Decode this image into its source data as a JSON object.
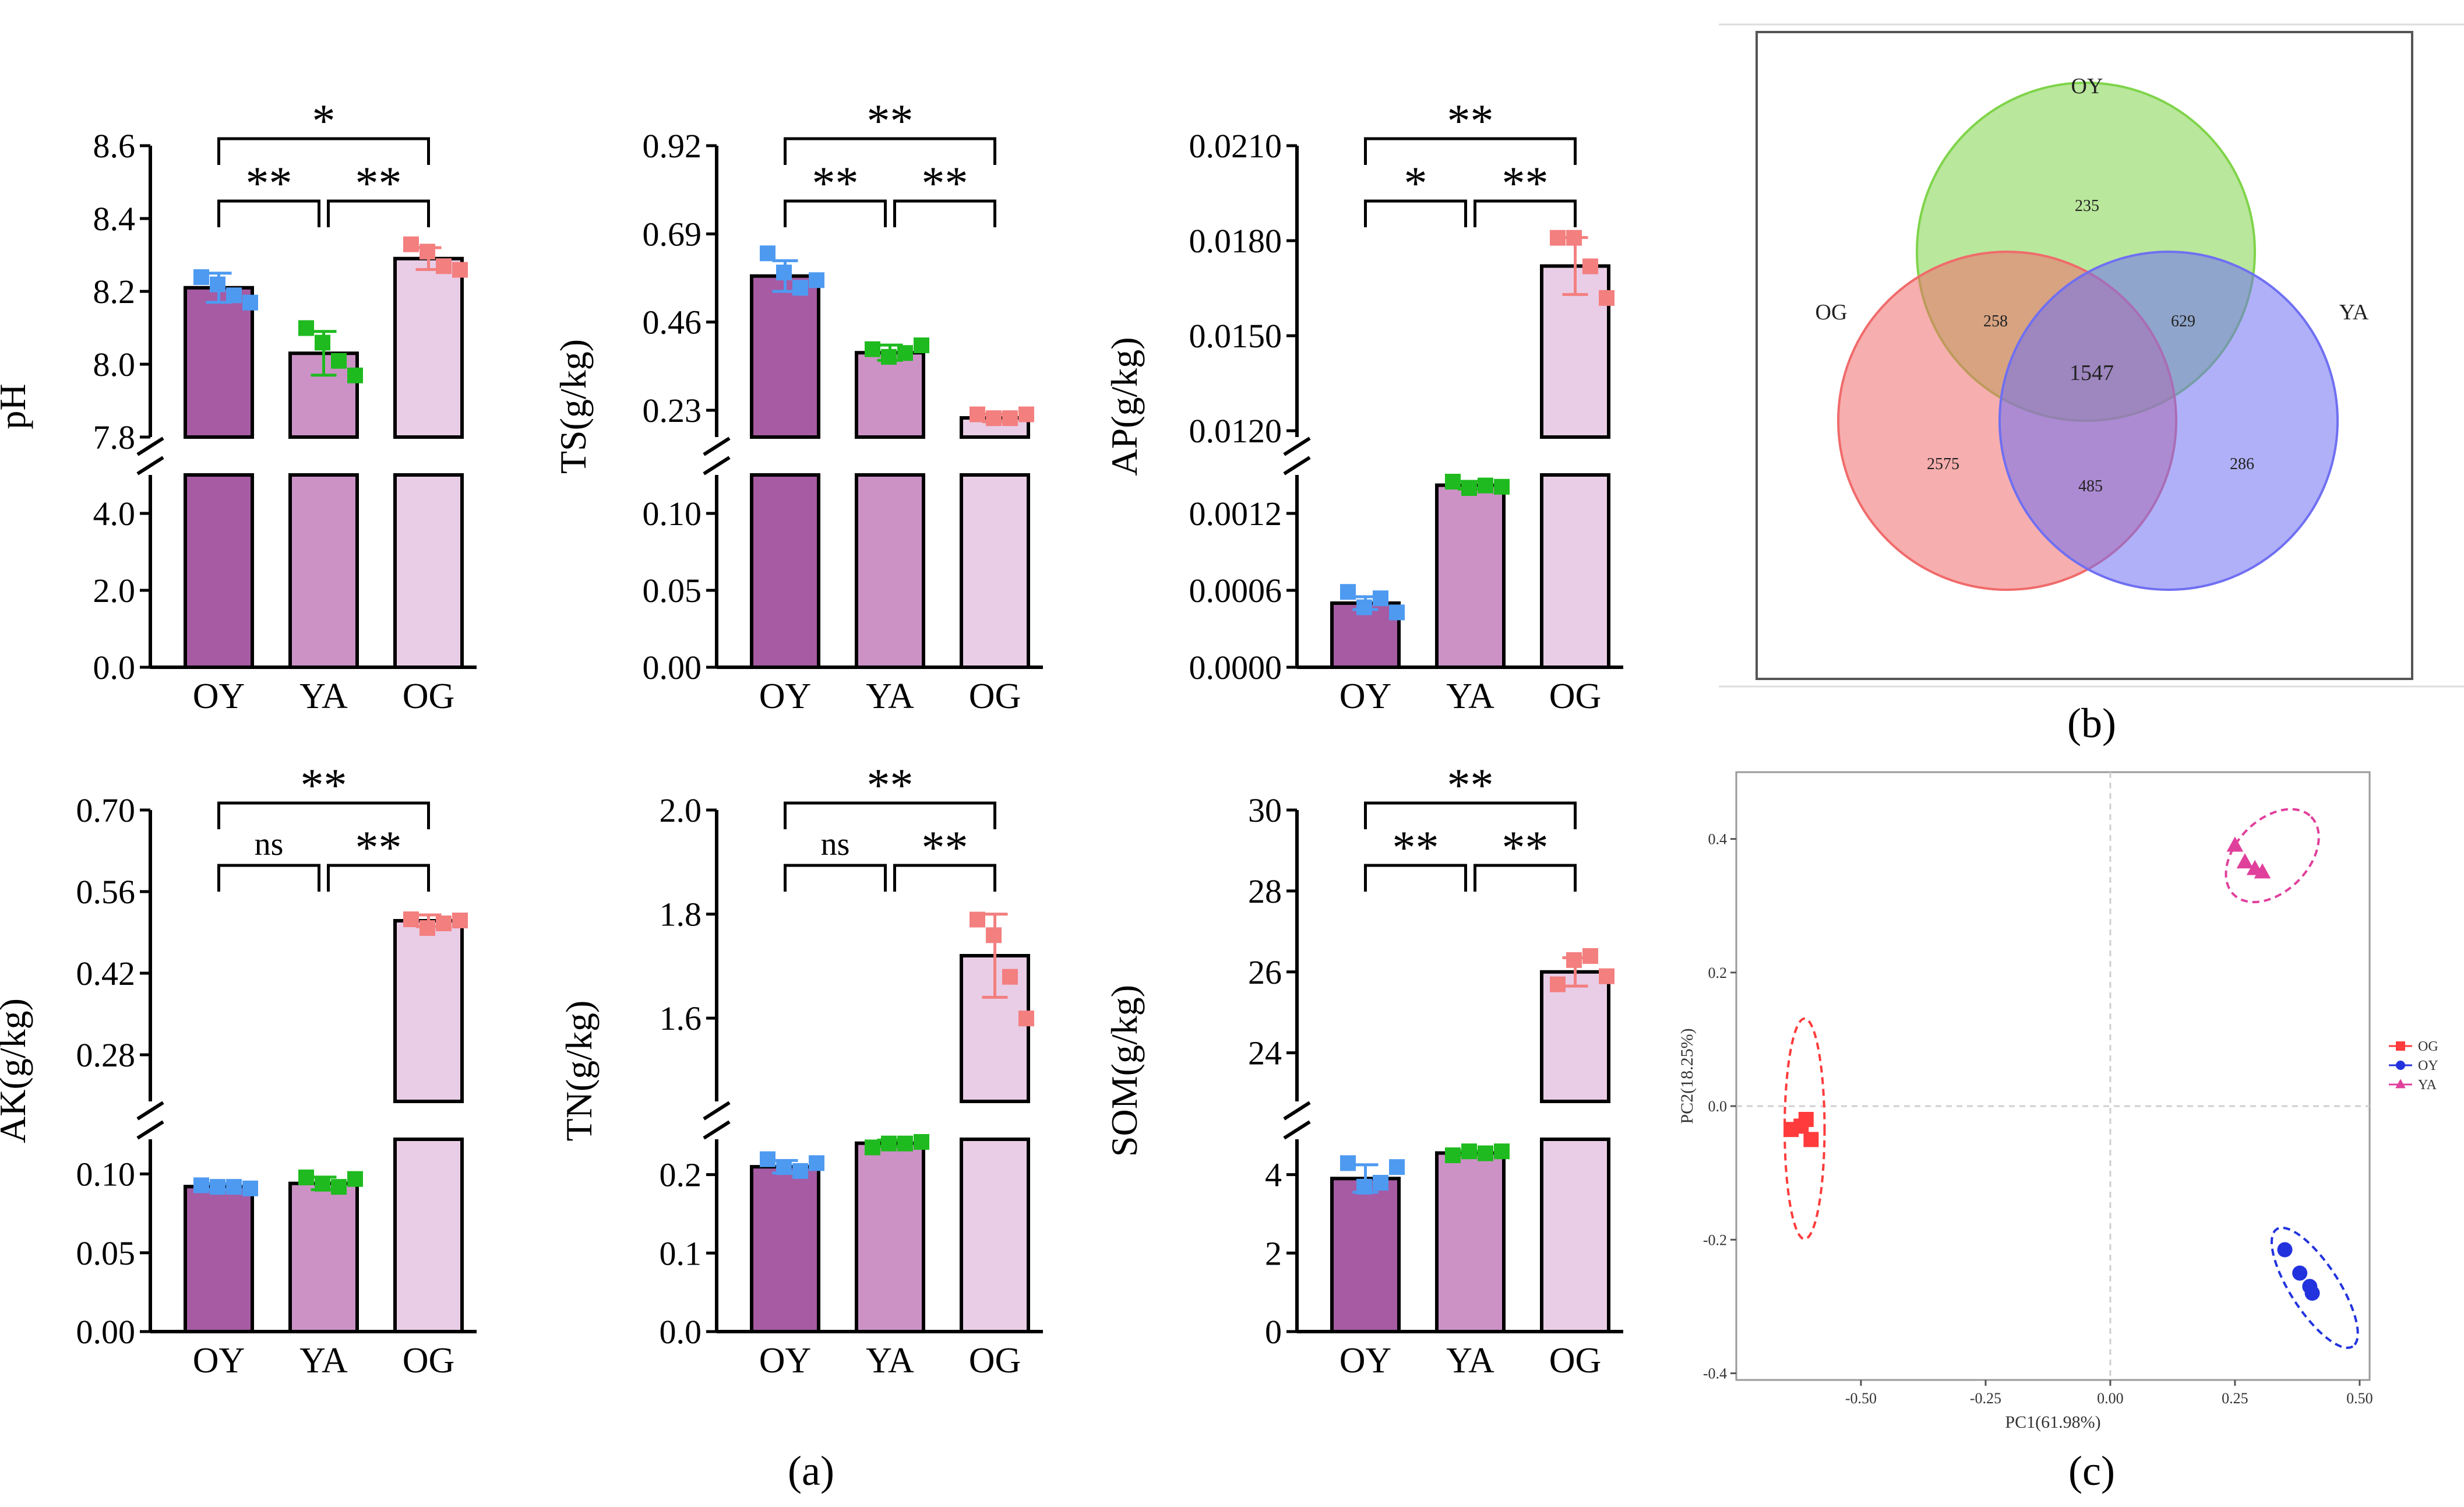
{
  "figure": {
    "caption_a": "(a)",
    "caption_b": "(b)",
    "caption_c": "(c)"
  },
  "chart_data": [
    {
      "type": "bar",
      "panel": "a-pH",
      "ylabel": "pH",
      "categories": [
        "OY",
        "YA",
        "OG"
      ],
      "values": [
        8.21,
        8.03,
        8.29
      ],
      "errors": [
        0.04,
        0.06,
        0.03
      ],
      "points": [
        [
          8.24,
          8.22,
          8.19,
          8.17
        ],
        [
          8.1,
          8.06,
          8.01,
          7.97
        ],
        [
          8.33,
          8.31,
          8.27,
          8.26
        ]
      ],
      "lower": {
        "ylim": [
          0,
          5
        ],
        "ticks": [
          0.0,
          2.0,
          4.0
        ],
        "tick_labels": [
          "0.0",
          "2.0",
          "4.0"
        ]
      },
      "upper": {
        "ylim": [
          7.8,
          8.6
        ],
        "ticks": [
          7.8,
          8.0,
          8.2,
          8.4,
          8.6
        ],
        "tick_labels": [
          "7.8",
          "8.0",
          "8.2",
          "8.4",
          "8.6"
        ]
      },
      "significance": [
        {
          "from": 0,
          "to": 1,
          "label": "**"
        },
        {
          "from": 1,
          "to": 2,
          "label": "**"
        },
        {
          "from": 0,
          "to": 2,
          "label": "*"
        }
      ]
    },
    {
      "type": "bar",
      "panel": "a-TS",
      "ylabel": "TS(g/kg)",
      "categories": [
        "OY",
        "YA",
        "OG"
      ],
      "values": [
        0.58,
        0.38,
        0.21
      ],
      "errors": [
        0.04,
        0.02,
        0.01
      ],
      "points": [
        [
          0.64,
          0.59,
          0.55,
          0.57
        ],
        [
          0.39,
          0.37,
          0.38,
          0.4
        ],
        [
          0.22,
          0.21,
          0.21,
          0.22
        ]
      ],
      "lower": {
        "ylim": [
          0,
          0.125
        ],
        "ticks": [
          0.0,
          0.05,
          0.1
        ],
        "tick_labels": [
          "0.00",
          "0.05",
          "0.10"
        ]
      },
      "upper": {
        "ylim": [
          0.16,
          0.92
        ],
        "ticks": [
          0.23,
          0.46,
          0.69,
          0.92
        ],
        "tick_labels": [
          "0.23",
          "0.46",
          "0.69",
          "0.92"
        ]
      },
      "significance": [
        {
          "from": 0,
          "to": 1,
          "label": "**"
        },
        {
          "from": 1,
          "to": 2,
          "label": "**"
        },
        {
          "from": 0,
          "to": 2,
          "label": "**"
        }
      ]
    },
    {
      "type": "bar",
      "panel": "a-AP",
      "ylabel": "AP(g/kg)",
      "categories": [
        "OY",
        "YA",
        "OG"
      ],
      "values": [
        0.0005,
        0.00142,
        0.0172
      ],
      "errors": [
        5e-05,
        3e-05,
        0.0009
      ],
      "points": [
        [
          0.00059,
          0.00047,
          0.00054,
          0.00043
        ],
        [
          0.00145,
          0.0014,
          0.00142,
          0.00141
        ],
        [
          0.0181,
          0.0181,
          0.0172,
          0.0162
        ]
      ],
      "lower": {
        "ylim": [
          0,
          0.0015
        ],
        "ticks": [
          0.0,
          0.0006,
          0.0012
        ],
        "tick_labels": [
          "0.0000",
          "0.0006",
          "0.0012"
        ]
      },
      "upper": {
        "ylim": [
          0.0118,
          0.021
        ],
        "ticks": [
          0.012,
          0.015,
          0.018,
          0.021
        ],
        "tick_labels": [
          "0.0120",
          "0.0150",
          "0.0180",
          "0.0210"
        ]
      },
      "significance": [
        {
          "from": 0,
          "to": 1,
          "label": "*"
        },
        {
          "from": 1,
          "to": 2,
          "label": "**"
        },
        {
          "from": 0,
          "to": 2,
          "label": "**"
        }
      ]
    },
    {
      "type": "bar",
      "panel": "a-AK",
      "ylabel": "AK(g/kg)",
      "categories": [
        "OY",
        "YA",
        "OG"
      ],
      "values": [
        0.092,
        0.094,
        0.51
      ],
      "errors": [
        0.002,
        0.004,
        0.01
      ],
      "points": [
        [
          0.093,
          0.092,
          0.092,
          0.091
        ],
        [
          0.098,
          0.094,
          0.092,
          0.097
        ],
        [
          0.513,
          0.498,
          0.506,
          0.511
        ]
      ],
      "lower": {
        "ylim": [
          0,
          0.122
        ],
        "ticks": [
          0.0,
          0.05,
          0.1
        ],
        "tick_labels": [
          "0.00",
          "0.05",
          "0.10"
        ]
      },
      "upper": {
        "ylim": [
          0.2,
          0.7
        ],
        "ticks": [
          0.28,
          0.42,
          0.56,
          0.7
        ],
        "tick_labels": [
          "0.28",
          "0.42",
          "0.56",
          "0.70"
        ]
      },
      "significance": [
        {
          "from": 0,
          "to": 1,
          "label": "ns"
        },
        {
          "from": 1,
          "to": 2,
          "label": "**"
        },
        {
          "from": 0,
          "to": 2,
          "label": "**"
        }
      ]
    },
    {
      "type": "bar",
      "panel": "a-TN",
      "ylabel": "TN(g/kg)",
      "categories": [
        "OY",
        "YA",
        "OG"
      ],
      "values": [
        0.21,
        0.24,
        1.72
      ],
      "errors": [
        0.008,
        0.004,
        0.08
      ],
      "points": [
        [
          0.22,
          0.21,
          0.205,
          0.215
        ],
        [
          0.235,
          0.24,
          0.24,
          0.242
        ],
        [
          1.79,
          1.76,
          1.68,
          1.6
        ]
      ],
      "lower": {
        "ylim": [
          0,
          0.245
        ],
        "ticks": [
          0.0,
          0.1,
          0.2
        ],
        "tick_labels": [
          "0.0",
          "0.1",
          "0.2"
        ]
      },
      "upper": {
        "ylim": [
          1.44,
          2.0
        ],
        "ticks": [
          1.6,
          1.8,
          2.0
        ],
        "tick_labels": [
          "1.6",
          "1.8",
          "2.0"
        ]
      },
      "significance": [
        {
          "from": 0,
          "to": 1,
          "label": "ns"
        },
        {
          "from": 1,
          "to": 2,
          "label": "**"
        },
        {
          "from": 0,
          "to": 2,
          "label": "**"
        }
      ]
    },
    {
      "type": "bar",
      "panel": "a-SOM",
      "ylabel": "SOM(g/kg)",
      "categories": [
        "OY",
        "YA",
        "OG"
      ],
      "values": [
        3.9,
        4.55,
        26.0
      ],
      "errors": [
        0.35,
        0.05,
        0.35
      ],
      "points": [
        [
          4.3,
          3.7,
          3.8,
          4.2
        ],
        [
          4.5,
          4.6,
          4.55,
          4.6
        ],
        [
          25.7,
          26.3,
          26.4,
          25.9
        ]
      ],
      "lower": {
        "ylim": [
          0,
          4.9
        ],
        "ticks": [
          0,
          2,
          4
        ],
        "tick_labels": [
          "0",
          "2",
          "4"
        ]
      },
      "upper": {
        "ylim": [
          22.8,
          30
        ],
        "ticks": [
          24,
          26,
          28,
          30
        ],
        "tick_labels": [
          "24",
          "26",
          "28",
          "30"
        ]
      },
      "significance": [
        {
          "from": 0,
          "to": 1,
          "label": "**"
        },
        {
          "from": 1,
          "to": 2,
          "label": "**"
        },
        {
          "from": 0,
          "to": 2,
          "label": "**"
        }
      ]
    },
    {
      "type": "venn",
      "panel": "b",
      "sets": [
        {
          "name": "OY",
          "color": "#7fd44a"
        },
        {
          "name": "OG",
          "color": "#f06b6b"
        },
        {
          "name": "YA",
          "color": "#6f6ff2"
        }
      ],
      "regions": {
        "OY_only": "235",
        "OG_only": "2575",
        "YA_only": "286",
        "OY_OG": "258",
        "OY_YA": "629",
        "OG_YA": "485",
        "all": "1547"
      }
    },
    {
      "type": "scatter",
      "panel": "c",
      "xlabel": "PC1(61.98%)",
      "ylabel": "PC2(18.25%)",
      "xlim": [
        -0.75,
        0.52
      ],
      "ylim": [
        -0.41,
        0.5
      ],
      "xticks": [
        -0.5,
        -0.25,
        0.0,
        0.25,
        0.5
      ],
      "xtick_labels": [
        "-0.50",
        "-0.25",
        "0.00",
        "0.25",
        "0.50"
      ],
      "yticks": [
        -0.4,
        -0.2,
        0.0,
        0.2,
        0.4
      ],
      "ytick_labels": [
        "-0.4",
        "-0.2",
        "0.0",
        "0.2",
        "0.4"
      ],
      "legend": "right",
      "series": [
        {
          "name": "OG",
          "color": "#ff3b3b",
          "marker": "square",
          "x": [
            -0.62,
            -0.61,
            -0.6,
            -0.64
          ],
          "y": [
            -0.03,
            -0.02,
            -0.05,
            -0.035
          ],
          "ellipse": {
            "cx": -0.613,
            "cy": -0.034,
            "rx": 0.04,
            "ry": 0.055,
            "angle": 0
          }
        },
        {
          "name": "OY",
          "color": "#2233dd",
          "marker": "circle",
          "x": [
            0.35,
            0.38,
            0.4,
            0.405
          ],
          "y": [
            -0.215,
            -0.25,
            -0.27,
            -0.28
          ],
          "ellipse": {
            "cx": 0.41,
            "cy": -0.272,
            "rx": 0.14,
            "ry": 0.012,
            "angle": 57
          }
        },
        {
          "name": "YA",
          "color": "#e0409c",
          "marker": "triangle",
          "x": [
            0.25,
            0.27,
            0.29,
            0.305
          ],
          "y": [
            0.39,
            0.365,
            0.355,
            0.35
          ],
          "ellipse": {
            "cx": 0.325,
            "cy": 0.375,
            "rx": 0.11,
            "ry": 0.018,
            "angle": -45
          }
        }
      ]
    }
  ]
}
